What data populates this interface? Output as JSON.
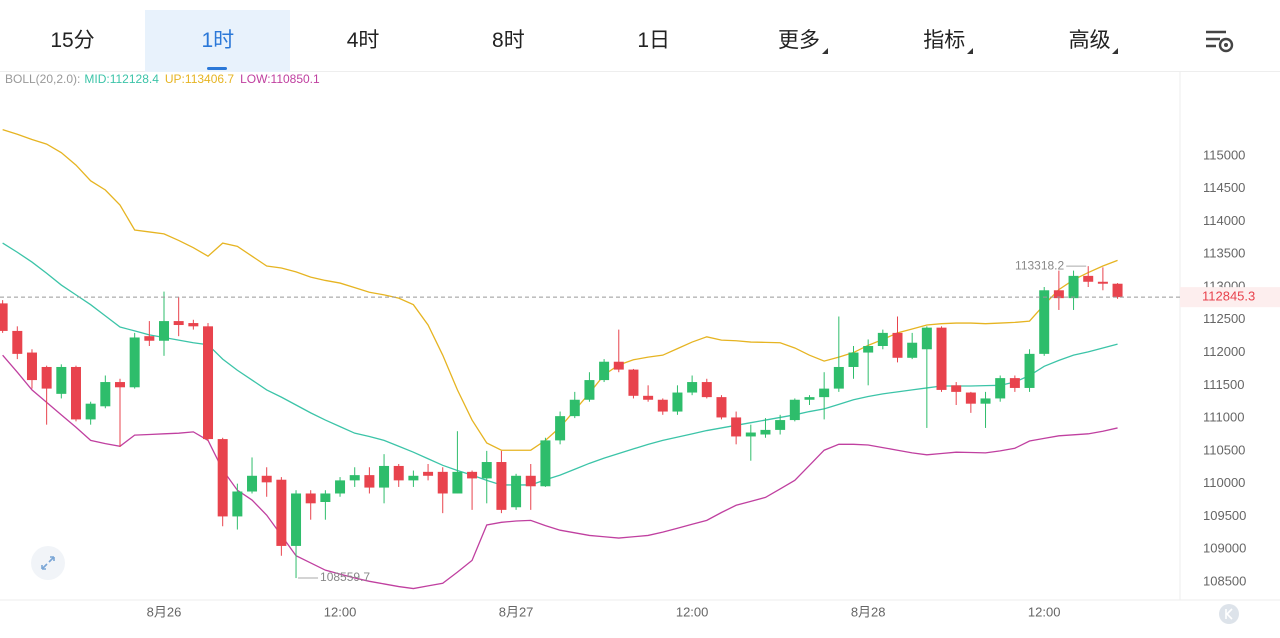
{
  "tabs": [
    "15分",
    "1时",
    "4时",
    "8时",
    "1日",
    "更多",
    "指标",
    "高级"
  ],
  "active_tab": 1,
  "chart_data": {
    "type": "candlestick",
    "indicator": "BOLL(20,2.0):",
    "categories": [
      null,
      null,
      null,
      null,
      null,
      null,
      null,
      null,
      null,
      null,
      null,
      "8月26",
      null,
      null,
      null,
      null,
      null,
      null,
      null,
      null,
      null,
      null,
      null,
      "12:00",
      null,
      null,
      null,
      null,
      null,
      null,
      null,
      null,
      null,
      null,
      null,
      "8月27",
      null,
      null,
      null,
      null,
      null,
      null,
      null,
      null,
      null,
      null,
      null,
      "12:00",
      null,
      null,
      null,
      null,
      null,
      null,
      null,
      null,
      null,
      null,
      null,
      "8月28",
      null,
      null,
      null,
      null,
      null,
      null,
      null,
      null,
      null,
      null,
      null,
      "12:00",
      null,
      null,
      null,
      null,
      null
    ],
    "open": [
      112750,
      112330,
      112000,
      111780,
      111370,
      111780,
      110980,
      111180,
      111550,
      111470,
      112250,
      112180,
      112480,
      112450,
      112400,
      110680,
      109500,
      109880,
      110120,
      110060,
      109050,
      109850,
      109720,
      109850,
      110050,
      110130,
      109940,
      110270,
      110050,
      110180,
      110180,
      109850,
      110180,
      110080,
      110330,
      109640,
      110120,
      109960,
      110660,
      111030,
      111280,
      111580,
      111860,
      111740,
      111340,
      111280,
      111100,
      111390,
      111550,
      111320,
      111010,
      110720,
      110750,
      110820,
      110970,
      111280,
      111320,
      111450,
      111780,
      112000,
      112100,
      112300,
      111920,
      112050,
      112380,
      111500,
      111390,
      111220,
      111300,
      111610,
      111460,
      111980,
      112950,
      112830,
      113170,
      113080,
      113050
    ],
    "high": [
      112800,
      112400,
      112050,
      111800,
      111820,
      111800,
      111250,
      111650,
      111600,
      112300,
      112480,
      112930,
      112850,
      112500,
      112450,
      110700,
      110000,
      110400,
      110250,
      110100,
      109900,
      109900,
      109900,
      110100,
      110250,
      110250,
      110450,
      110300,
      110200,
      110300,
      110250,
      110800,
      110200,
      110500,
      110500,
      110150,
      110300,
      110700,
      111100,
      111400,
      111700,
      111900,
      112350,
      111750,
      111500,
      111300,
      111500,
      111650,
      111600,
      111350,
      111100,
      110900,
      111000,
      111050,
      111300,
      111350,
      111700,
      112550,
      112100,
      112200,
      112350,
      112550,
      112300,
      112400,
      112400,
      111550,
      111400,
      111400,
      111650,
      111650,
      112050,
      113000,
      113250,
      113250,
      113318.2,
      113300,
      113060
    ],
    "low": [
      112300,
      111900,
      111450,
      110900,
      111300,
      110950,
      110900,
      111150,
      110560,
      111450,
      112100,
      111950,
      112250,
      112350,
      110650,
      109350,
      109300,
      109850,
      109800,
      108900,
      108559.7,
      109450,
      109450,
      109800,
      109950,
      109850,
      109700,
      109950,
      109950,
      110050,
      109550,
      109850,
      109600,
      109700,
      109550,
      109600,
      109600,
      109950,
      110600,
      111000,
      111250,
      111550,
      111700,
      111300,
      111250,
      111050,
      111050,
      111350,
      111300,
      110980,
      110600,
      110350,
      110700,
      110750,
      110950,
      111200,
      110980,
      111400,
      111600,
      111500,
      112050,
      111850,
      111900,
      110850,
      111400,
      111200,
      111080,
      110850,
      111250,
      111400,
      111400,
      111950,
      112650,
      112650,
      113000,
      112950,
      112820
    ],
    "close": [
      112330,
      111980,
      111580,
      111450,
      111780,
      110980,
      111220,
      111550,
      111470,
      112230,
      112180,
      112480,
      112420,
      112400,
      110680,
      109500,
      109880,
      110120,
      110020,
      109050,
      109850,
      109700,
      109850,
      110050,
      110130,
      109940,
      110270,
      110050,
      110120,
      110120,
      109850,
      110180,
      110080,
      110330,
      109600,
      110120,
      109960,
      110660,
      111030,
      111280,
      111580,
      111860,
      111740,
      111340,
      111280,
      111100,
      111390,
      111550,
      111320,
      111010,
      110720,
      110780,
      110820,
      110970,
      111280,
      111320,
      111450,
      111780,
      112000,
      112100,
      112300,
      111920,
      112150,
      112380,
      111430,
      111400,
      111220,
      111300,
      111610,
      111460,
      111980,
      112950,
      112830,
      113170,
      113080,
      113050,
      112845.3
    ],
    "up_color": "#2ebd6b",
    "down_color": "#e8434d",
    "overlays": [
      {
        "name": "MID:",
        "color": "#3cc4a8",
        "values": [
          113670,
          113530,
          113380,
          113210,
          113030,
          112880,
          112730,
          112560,
          112390,
          112330,
          112270,
          112230,
          112190,
          112150,
          112120,
          111900,
          111730,
          111580,
          111430,
          111320,
          111200,
          111080,
          110970,
          110870,
          110770,
          110720,
          110660,
          110570,
          110480,
          110380,
          110280,
          110200,
          110130,
          110050,
          109980,
          109980,
          109980,
          110060,
          110130,
          110220,
          110310,
          110390,
          110460,
          110530,
          110600,
          110660,
          110710,
          110760,
          110810,
          110850,
          110890,
          110930,
          110970,
          111010,
          111050,
          111100,
          111140,
          111210,
          111280,
          111330,
          111370,
          111400,
          111430,
          111460,
          111490,
          111490,
          111490,
          111495,
          111500,
          111550,
          111650,
          111790,
          111880,
          111960,
          112010,
          112070,
          112128.4
        ]
      },
      {
        "name": "UP:",
        "color": "#e6b422",
        "values": [
          115400,
          115330,
          115250,
          115180,
          115050,
          114860,
          114620,
          114480,
          114250,
          113870,
          113840,
          113810,
          113710,
          113600,
          113470,
          113670,
          113620,
          113470,
          113320,
          113290,
          113230,
          113150,
          113100,
          113060,
          112990,
          112920,
          112880,
          112830,
          112730,
          112420,
          111960,
          111430,
          110970,
          110620,
          110510,
          110510,
          110510,
          110660,
          110860,
          111120,
          111380,
          111660,
          111810,
          111890,
          111930,
          111960,
          112060,
          112160,
          112240,
          112190,
          112180,
          112160,
          112155,
          112150,
          112070,
          111960,
          111870,
          111930,
          112000,
          112110,
          112200,
          112300,
          112360,
          112420,
          112440,
          112450,
          112450,
          112440,
          112450,
          112460,
          112480,
          112730,
          112960,
          113110,
          113220,
          113320,
          113406.7
        ]
      },
      {
        "name": "LOW:",
        "color": "#c040a0",
        "values": [
          111960,
          111700,
          111430,
          111240,
          111050,
          110860,
          110660,
          110610,
          110570,
          110740,
          110750,
          110760,
          110770,
          110790,
          110660,
          110210,
          109900,
          109750,
          109520,
          109210,
          108900,
          108790,
          108680,
          108620,
          108560,
          108510,
          108470,
          108430,
          108400,
          108440,
          108480,
          108650,
          108830,
          109370,
          109410,
          109430,
          109440,
          109360,
          109290,
          109250,
          109210,
          109190,
          109170,
          109190,
          109210,
          109260,
          109320,
          109380,
          109440,
          109560,
          109670,
          109730,
          109790,
          109920,
          110050,
          110280,
          110510,
          110600,
          110600,
          110590,
          110550,
          110510,
          110470,
          110440,
          110460,
          110480,
          110475,
          110470,
          110500,
          110540,
          110650,
          110690,
          110730,
          110745,
          110760,
          110800,
          110850.1
        ]
      }
    ],
    "ylim": [
      108225,
      116280
    ],
    "yticks": [
      108500,
      109000,
      109500,
      110000,
      110500,
      111000,
      111500,
      112000,
      112500,
      113000,
      113500,
      114000,
      114500,
      115000
    ],
    "grid": false
  }
}
